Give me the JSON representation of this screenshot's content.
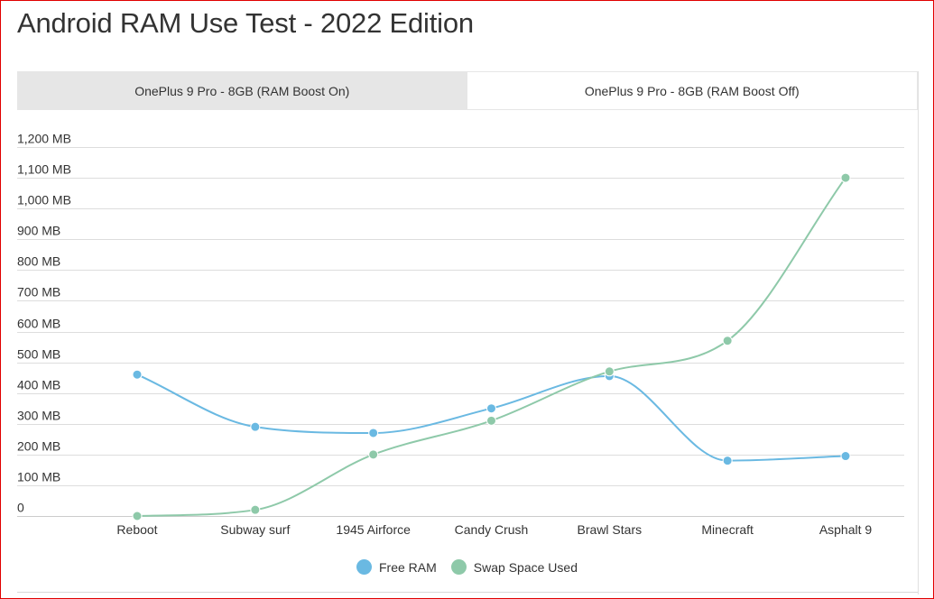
{
  "page": {
    "title": "Android RAM Use Test - 2022 Edition"
  },
  "tabs": [
    {
      "label": "OnePlus 9 Pro - 8GB (RAM Boost On)",
      "active": false
    },
    {
      "label": "OnePlus 9 Pro - 8GB (RAM Boost Off)",
      "active": true
    }
  ],
  "colors": {
    "free_ram": "#6ab9e2",
    "swap": "#8ec9a9",
    "grid": "#dddddd",
    "text": "#333333"
  },
  "chart_data": {
    "type": "line",
    "categories": [
      "Reboot",
      "Subway surf",
      "1945 Airforce",
      "Candy Crush",
      "Brawl Stars",
      "Minecraft",
      "Asphalt 9"
    ],
    "series": [
      {
        "name": "Free RAM",
        "values": [
          460,
          290,
          270,
          350,
          455,
          180,
          195
        ],
        "color": "#6ab9e2"
      },
      {
        "name": "Swap Space Used",
        "values": [
          0,
          20,
          200,
          310,
          470,
          570,
          1100
        ],
        "color": "#8ec9a9"
      }
    ],
    "ylim": [
      0,
      1200
    ],
    "yticks": [
      0,
      100,
      200,
      300,
      400,
      500,
      600,
      700,
      800,
      900,
      1000,
      1100,
      1200
    ],
    "ytick_labels": [
      "0",
      "100 MB",
      "200 MB",
      "300 MB",
      "400 MB",
      "500 MB",
      "600 MB",
      "700 MB",
      "800 MB",
      "900 MB",
      "1,000 MB",
      "1,100 MB",
      "1,200 MB"
    ],
    "grid": true,
    "legend": "bottom-center",
    "smooth": true
  }
}
